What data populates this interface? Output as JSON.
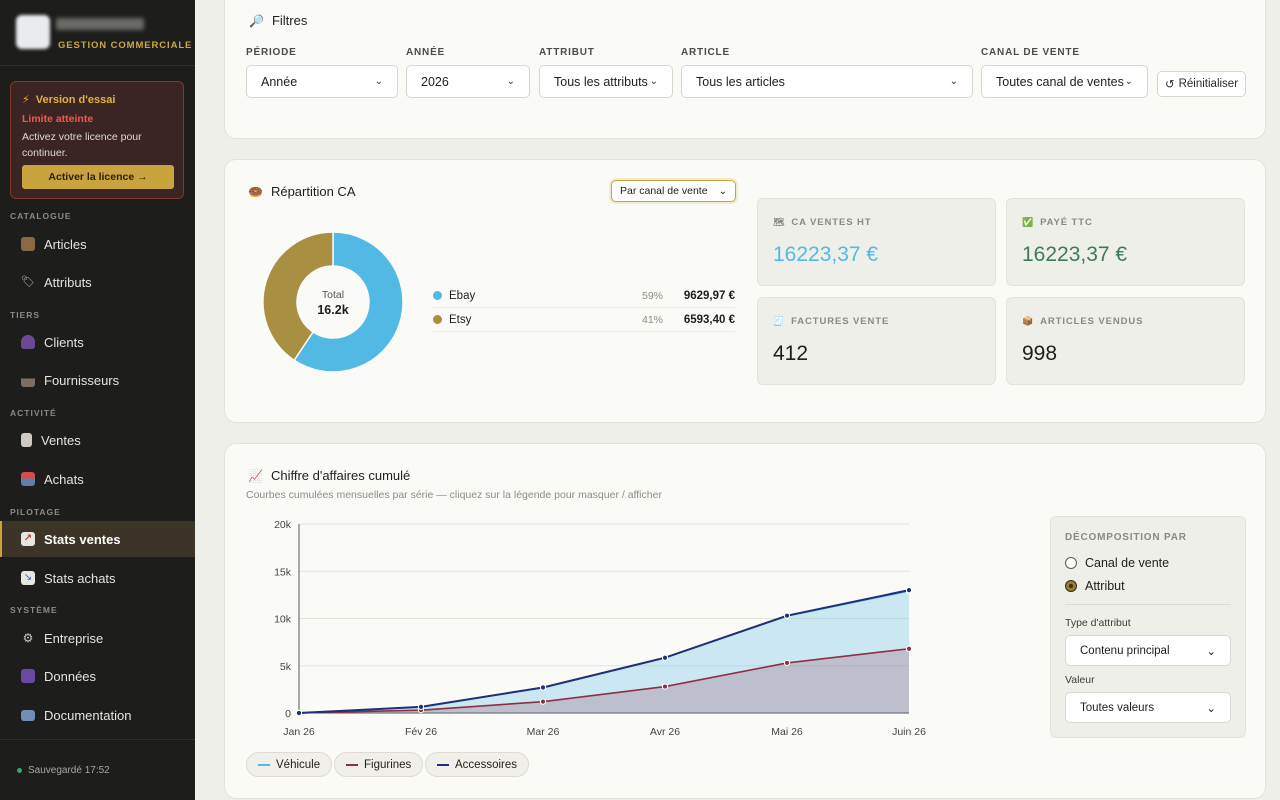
{
  "brand": {
    "subtitle": "GESTION COMMERCIALE"
  },
  "trial": {
    "title": "Version d'essai",
    "limit": "Limite atteinte",
    "text": "Activez votre licence pour continuer.",
    "button": "Activer la licence →"
  },
  "nav": {
    "sections": [
      "CATALOGUE",
      "TIERS",
      "ACTIVITÉ",
      "PILOTAGE",
      "SYSTÈME"
    ],
    "items": [
      {
        "label": "Articles",
        "icon": "box-icon"
      },
      {
        "label": "Attributs",
        "icon": "tag-icon"
      },
      {
        "label": "Clients",
        "icon": "user-icon"
      },
      {
        "label": "Fournisseurs",
        "icon": "factory-icon"
      },
      {
        "label": "Ventes",
        "icon": "receipt-icon"
      },
      {
        "label": "Achats",
        "icon": "inbox-icon"
      },
      {
        "label": "Stats ventes",
        "icon": "chart-up-icon",
        "active": true
      },
      {
        "label": "Stats achats",
        "icon": "chart-down-icon"
      },
      {
        "label": "Entreprise",
        "icon": "gear-icon"
      },
      {
        "label": "Données",
        "icon": "floppy-icon"
      },
      {
        "label": "Documentation",
        "icon": "book-icon"
      }
    ],
    "saved": "Sauvegardé 17:52"
  },
  "filters": {
    "title": "Filtres",
    "periode": {
      "label": "PÉRIODE",
      "value": "Année"
    },
    "annee": {
      "label": "ANNÉE",
      "value": "2026"
    },
    "attribut": {
      "label": "ATTRIBUT",
      "value": "Tous les attributs"
    },
    "article": {
      "label": "ARTICLE",
      "value": "Tous les articles"
    },
    "canal": {
      "label": "CANAL DE VENTE",
      "value": "Toutes canal de ventes"
    },
    "reset": "Réinitialiser"
  },
  "repartition": {
    "title": "Répartition CA",
    "mode": "Par canal de vente",
    "total_label": "Total",
    "total_value": "16.2k",
    "legend": [
      {
        "name": "Ebay",
        "pct": "59%",
        "value": "9629,97 €",
        "color": "#52b9e5"
      },
      {
        "name": "Etsy",
        "pct": "41%",
        "value": "6593,40 €",
        "color": "#a88f42"
      }
    ]
  },
  "kpis": {
    "ca_ht": {
      "label": "CA VENTES HT",
      "value": "16223,37 €",
      "color": "#52b9e5"
    },
    "paye_ttc": {
      "label": "PAYÉ TTC",
      "value": "16223,37 €",
      "color": "#3f7a58"
    },
    "factures": {
      "label": "FACTURES VENTE",
      "value": "412"
    },
    "articles": {
      "label": "ARTICLES VENDUS",
      "value": "998"
    }
  },
  "cumul": {
    "title": "Chiffre d'affaires cumulé",
    "subtitle": "Courbes cumulées mensuelles par série — cliquez sur la légende pour masquer / afficher",
    "decomposition": {
      "title": "DÉCOMPOSITION PAR",
      "options": [
        "Canal de vente",
        "Attribut"
      ],
      "selected": "Attribut",
      "type_label": "Type d'attribut",
      "type_value": "Contenu principal",
      "valeur_label": "Valeur",
      "valeur_value": "Toutes valeurs"
    }
  },
  "chart_data": [
    {
      "type": "pie",
      "categories": [
        "Ebay",
        "Etsy"
      ],
      "values": [
        9629.97,
        6593.4
      ],
      "colors": [
        "#52b9e5",
        "#a88f42"
      ]
    },
    {
      "type": "area",
      "title": "Chiffre d'affaires cumulé",
      "categories": [
        "Jan 26",
        "Fév 26",
        "Mar 26",
        "Avr 26",
        "Mai 26",
        "Juin 26"
      ],
      "y_ticks": [
        "0",
        "5k",
        "10k",
        "15k",
        "20k"
      ],
      "ylim": [
        0,
        20000
      ],
      "grid": true,
      "series": [
        {
          "name": "Véhicule",
          "color": "#52b9e5",
          "values": [
            0,
            650,
            2700,
            5850,
            10250,
            12900
          ]
        },
        {
          "name": "Figurines",
          "color": "#8d2f45",
          "values": [
            0,
            300,
            1200,
            2800,
            5300,
            6800
          ]
        },
        {
          "name": "Accessoires",
          "color": "#1f2f78",
          "values": [
            0,
            650,
            2700,
            5850,
            10300,
            13000
          ]
        }
      ]
    }
  ]
}
